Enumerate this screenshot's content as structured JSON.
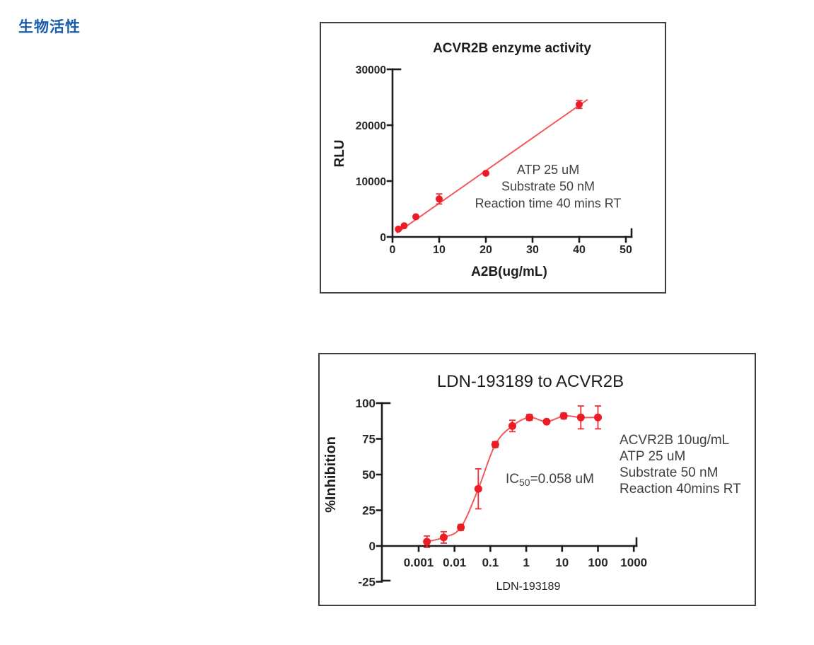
{
  "section_label": "生物活性",
  "colors": {
    "section_label_blue": "#1a5dab",
    "marker_red": "#ec1c24",
    "curve_red": "#f2595b",
    "error_red": "#ed3237",
    "axis_black": "#1d1d1f",
    "tick_text": "#262626",
    "annotation_gray": "#3f4043",
    "panel_border": "#3e3e3e"
  },
  "chart_data": [
    {
      "type": "scatter",
      "x_scale": "linear",
      "title": "ACVR2B enzyme activity",
      "xlabel": "A2B(ug/mL)",
      "ylabel": "RLU",
      "xlim": [
        0,
        50
      ],
      "ylim": [
        0,
        30000
      ],
      "x_ticks": [
        0,
        10,
        20,
        30,
        40,
        50
      ],
      "y_ticks": [
        0,
        10000,
        20000,
        30000
      ],
      "grid": false,
      "legend": false,
      "points": {
        "x": [
          1.25,
          2.5,
          5,
          10,
          20,
          40
        ],
        "y": [
          1400,
          2000,
          3600,
          6800,
          11400,
          23700
        ],
        "yerr": [
          0,
          0,
          0,
          900,
          0,
          700
        ]
      },
      "fit_line": {
        "x": [
          0.9,
          41.8
        ],
        "y": [
          700,
          24600
        ]
      },
      "annotation_lines": [
        "ATP 25 uM",
        "Substrate 50 nM",
        "Reaction time 40 mins RT"
      ]
    },
    {
      "type": "scatter",
      "x_scale": "log",
      "title": "LDN-193189 to ACVR2B",
      "xlabel": "LDN-193189",
      "ylabel": "%Inhibition",
      "xlim": [
        0.001,
        1000
      ],
      "ylim": [
        -25,
        100
      ],
      "x_ticks": [
        0.001,
        0.01,
        0.1,
        1,
        10,
        100,
        1000
      ],
      "x_tick_labels": [
        "0.001",
        "0.01",
        "0.1",
        "1",
        "10",
        "100",
        "1000"
      ],
      "y_ticks": [
        -25,
        0,
        25,
        50,
        75,
        100
      ],
      "grid": false,
      "legend": false,
      "points": {
        "x": [
          0.0017,
          0.005,
          0.015,
          0.046,
          0.137,
          0.41,
          1.23,
          3.7,
          11.1,
          33.3,
          100
        ],
        "y": [
          3,
          6,
          13,
          40,
          71,
          84,
          90,
          87,
          91,
          90,
          90
        ],
        "yerr": [
          4,
          4,
          2,
          14,
          2,
          4,
          2,
          1,
          2,
          8,
          8
        ]
      },
      "ic50_label": {
        "prefix": "IC",
        "subscript": "50",
        "suffix": "=0.058 uM"
      },
      "annotation_lines": [
        "ACVR2B 10ug/mL",
        "ATP 25 uM",
        "Substrate 50 nM",
        "Reaction 40mins RT"
      ]
    }
  ]
}
